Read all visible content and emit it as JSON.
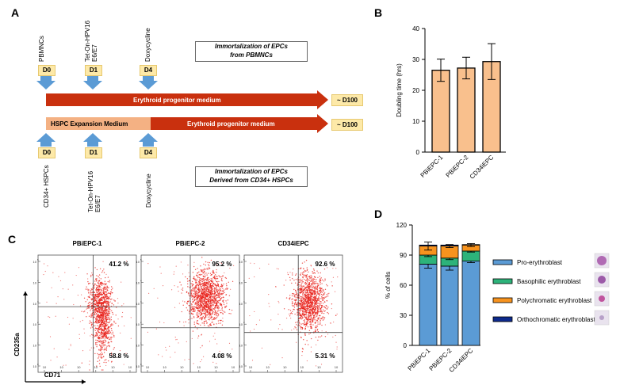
{
  "panels": {
    "a": "A",
    "b": "B",
    "c": "C",
    "d": "D"
  },
  "panel_a": {
    "top_labels": [
      "PBMNCs",
      "Tet-On-HPV16 E6/E7",
      "Doxycycline"
    ],
    "bottom_labels": [
      "CD34+ HSPCs",
      "Tet-On-HPV16 E6/E7",
      "Doxycycline"
    ],
    "days": [
      "D0",
      "D1",
      "D4"
    ],
    "top_bar": "Erythroid progenitor medium",
    "bottom_bar_left": "HSPC Expansion Medium",
    "bottom_bar_right": "Erythroid progenitor medium",
    "end_label": "~ D100",
    "top_desc": [
      "Immortalization of EPCs",
      "from PBMNCs"
    ],
    "bottom_desc": [
      "Immortalization of EPCs",
      "Derived  from CD34+ HSPCs"
    ],
    "colors": {
      "bar_dark": "#c9300e",
      "bar_light": "#f4b183",
      "arrow": "#5b9bd5",
      "day_box": "#fde9a8"
    }
  },
  "chart_data": [
    {
      "type": "bar",
      "panel": "B",
      "categories": [
        "PBiEPC-1",
        "PBiEPC-2",
        "CD34iEPC"
      ],
      "values": [
        26.5,
        27.2,
        29.3
      ],
      "errors": [
        3.6,
        3.5,
        5.8
      ],
      "ylabel": "Doubling time (hrs)",
      "ylim": [
        0,
        40
      ],
      "yticks": [
        0,
        10,
        20,
        30,
        40
      ],
      "bar_color": "#f9c08d",
      "grid": false
    },
    {
      "type": "bar",
      "panel": "D",
      "stacked": true,
      "categories": [
        "PBiEPC-1",
        "PBiEPC-2",
        "CD34iEPC"
      ],
      "series": [
        {
          "name": "Pro-erythroblast",
          "values": [
            81,
            79,
            84
          ],
          "errors": [
            4,
            4,
            1.5
          ],
          "color": "#5b9bd5"
        },
        {
          "name": "Basophilic erythroblast",
          "values": [
            9,
            8,
            10
          ],
          "errors": [
            1.5,
            1.5,
            1
          ],
          "color": "#2db37a"
        },
        {
          "name": "Polychromatic erythroblast",
          "values": [
            9,
            12,
            6
          ],
          "errors": [
            4,
            1.5,
            1.5
          ],
          "color": "#f7931e"
        },
        {
          "name": "Orthochromatic erythroblast",
          "values": [
            1,
            1,
            0.5
          ],
          "errors": [
            0,
            0,
            0
          ],
          "color": "#0d2a8c"
        }
      ],
      "ylabel": "% of cells",
      "ylim": [
        0,
        120
      ],
      "yticks": [
        0,
        30,
        60,
        90,
        120
      ],
      "legend": "right"
    },
    {
      "type": "scatter",
      "panel": "C",
      "xlabel": "CD71",
      "ylabel": "CD235a",
      "ylim_log": [
        0,
        5
      ],
      "yticks_log": [
        0,
        1,
        2,
        3,
        4,
        5
      ],
      "plots": [
        {
          "title": "PBiEPC-1",
          "upper_right": "41.2 %",
          "lower_right": "58.8 %"
        },
        {
          "title": "PBiEPC-2",
          "upper_right": "95.2 %",
          "lower_right": "4.08 %"
        },
        {
          "title": "CD34iEPC",
          "upper_right": "92.6 %",
          "lower_right": "5.31 %"
        }
      ],
      "dot_color": "#e8201a"
    }
  ]
}
